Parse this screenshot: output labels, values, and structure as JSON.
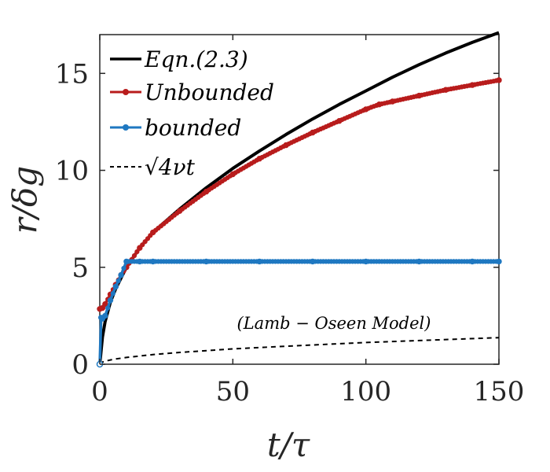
{
  "chart_data": {
    "type": "line",
    "xlabel": "t/τ",
    "ylabel": "r/δg",
    "xlim": [
      0,
      150
    ],
    "ylim": [
      0,
      17
    ],
    "xticks": [
      0,
      50,
      100,
      150
    ],
    "yticks": [
      0,
      5,
      10,
      15
    ],
    "legend_position": "top-left",
    "annotation": "(Lamb − Oseen Model)",
    "series": [
      {
        "name": "Eqn.(2.3)",
        "style": "solid",
        "color": "#000000",
        "x": [
          0,
          1,
          2,
          4,
          6,
          10,
          15,
          20,
          30,
          40,
          50,
          60,
          70,
          80,
          90,
          100,
          110,
          120,
          130,
          140,
          150
        ],
        "y": [
          0,
          1.4,
          2.2,
          3.2,
          3.9,
          5.0,
          6.0,
          6.8,
          8.0,
          9.1,
          10.1,
          11.0,
          11.85,
          12.65,
          13.4,
          14.1,
          14.8,
          15.45,
          16.05,
          16.6,
          17.1
        ]
      },
      {
        "name": "Unbounded",
        "style": "line-markers",
        "color": "#b81c1c",
        "x": [
          0,
          1,
          2,
          4,
          6,
          8,
          10,
          15,
          20,
          30,
          40,
          50,
          60,
          70,
          80,
          90,
          100,
          105,
          110,
          120,
          130,
          140,
          150
        ],
        "y": [
          2.85,
          2.9,
          3.1,
          3.6,
          4.1,
          4.6,
          5.0,
          6.0,
          6.8,
          7.9,
          8.9,
          9.8,
          10.6,
          11.3,
          11.95,
          12.55,
          13.15,
          13.4,
          13.55,
          13.85,
          14.15,
          14.4,
          14.65
        ]
      },
      {
        "name": "bounded",
        "style": "line-markers",
        "color": "#1f78c1",
        "x": [
          0,
          0.5,
          1,
          2,
          4,
          6,
          8,
          10,
          15,
          20,
          40,
          60,
          80,
          100,
          120,
          140,
          150
        ],
        "y": [
          0,
          2.4,
          2.35,
          2.5,
          3.3,
          4.0,
          4.6,
          5.3,
          5.3,
          5.3,
          5.3,
          5.3,
          5.3,
          5.3,
          5.3,
          5.3,
          5.3
        ]
      },
      {
        "name": "√4νt",
        "style": "dashed",
        "color": "#000000",
        "x": [
          0,
          1,
          2,
          5,
          10,
          20,
          30,
          50,
          70,
          100,
          120,
          150
        ],
        "y": [
          0,
          0.11,
          0.16,
          0.25,
          0.35,
          0.5,
          0.61,
          0.79,
          0.93,
          1.12,
          1.22,
          1.37
        ]
      }
    ]
  }
}
